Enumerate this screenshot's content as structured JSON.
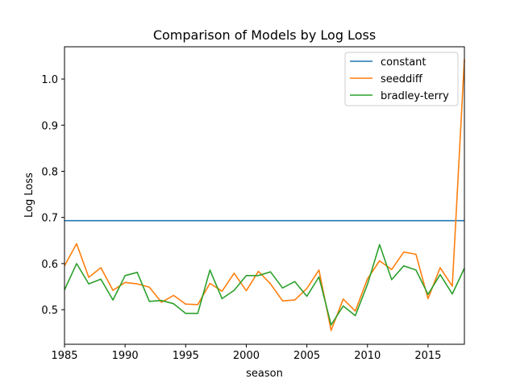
{
  "chart_data": {
    "type": "line",
    "title": "Comparison of Models by Log Loss",
    "xlabel": "season",
    "ylabel": "Log Loss",
    "xlim": [
      1985,
      2018
    ],
    "ylim": [
      0.425,
      1.07
    ],
    "xticks": [
      1985,
      1990,
      1995,
      2000,
      2005,
      2010,
      2015
    ],
    "xtick_labels": [
      "1985",
      "1990",
      "1995",
      "2000",
      "2005",
      "2010",
      "2015"
    ],
    "yticks": [
      0.5,
      0.6,
      0.7,
      0.8,
      0.9,
      1.0
    ],
    "ytick_labels": [
      "0.5",
      "0.6",
      "0.7",
      "0.8",
      "0.9",
      "1.0"
    ],
    "grid": false,
    "legend": "top-right",
    "x": [
      1985,
      1986,
      1987,
      1988,
      1989,
      1990,
      1991,
      1992,
      1993,
      1994,
      1995,
      1996,
      1997,
      1998,
      1999,
      2000,
      2001,
      2002,
      2003,
      2004,
      2005,
      2006,
      2007,
      2008,
      2009,
      2010,
      2011,
      2012,
      2013,
      2014,
      2015,
      2016,
      2017,
      2018
    ],
    "series": [
      {
        "name": "constant",
        "color": "#1f77b4",
        "values": [
          0.693,
          0.693,
          0.693,
          0.693,
          0.693,
          0.693,
          0.693,
          0.693,
          0.693,
          0.693,
          0.693,
          0.693,
          0.693,
          0.693,
          0.693,
          0.693,
          0.693,
          0.693,
          0.693,
          0.693,
          0.693,
          0.693,
          0.693,
          0.693,
          0.693,
          0.693,
          0.693,
          0.693,
          0.693,
          0.693,
          0.693,
          0.693,
          0.693,
          0.693
        ]
      },
      {
        "name": "seeddiff",
        "color": "#ff7f0e",
        "values": [
          0.595,
          0.643,
          0.57,
          0.591,
          0.542,
          0.559,
          0.556,
          0.549,
          0.516,
          0.531,
          0.512,
          0.511,
          0.557,
          0.54,
          0.579,
          0.541,
          0.583,
          0.556,
          0.519,
          0.521,
          0.546,
          0.586,
          0.455,
          0.523,
          0.497,
          0.567,
          0.606,
          0.587,
          0.625,
          0.62,
          0.524,
          0.591,
          0.551,
          1.043
        ]
      },
      {
        "name": "bradley-terry",
        "color": "#2ca02c",
        "values": [
          0.543,
          0.6,
          0.556,
          0.566,
          0.521,
          0.574,
          0.581,
          0.518,
          0.52,
          0.513,
          0.492,
          0.492,
          0.586,
          0.524,
          0.542,
          0.574,
          0.574,
          0.582,
          0.547,
          0.561,
          0.529,
          0.571,
          0.467,
          0.508,
          0.487,
          0.555,
          0.641,
          0.565,
          0.595,
          0.586,
          0.533,
          0.576,
          0.534,
          0.59
        ]
      }
    ]
  }
}
